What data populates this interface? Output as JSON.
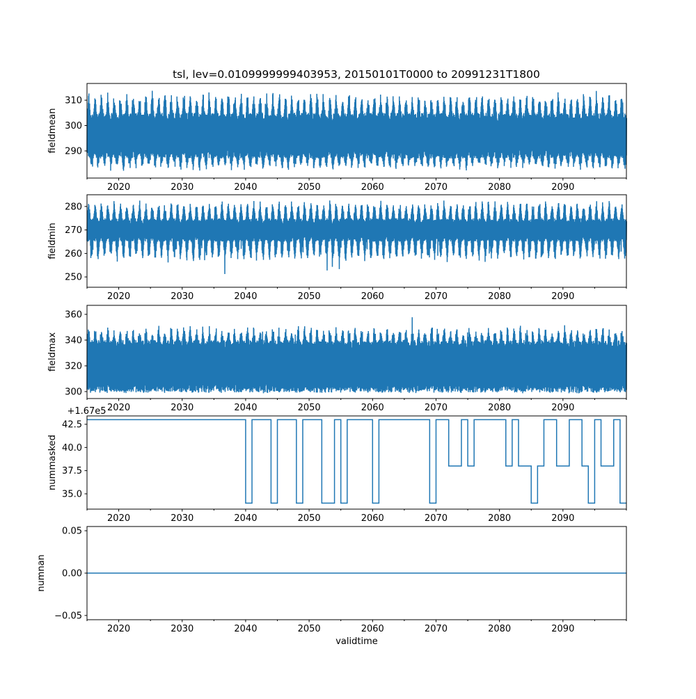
{
  "chart_data": [
    {
      "type": "line",
      "ylabel": "fieldmean",
      "ylim": [
        279.3,
        316.6
      ],
      "yticks": [
        290,
        300,
        310
      ],
      "description_values": {
        "dense_band": [
          287,
          305
        ],
        "seasonal_peak_max": 314,
        "seasonal_trough_min": 282
      },
      "color": "#1f77b4"
    },
    {
      "type": "line",
      "ylabel": "fieldmin",
      "ylim": [
        245.6,
        285
      ],
      "yticks": [
        250,
        260,
        270,
        280
      ],
      "description_values": {
        "dense_band": [
          265,
          275
        ],
        "seasonal_peak_max": 283,
        "seasonal_trough_min": 248
      },
      "color": "#1f77b4"
    },
    {
      "type": "line",
      "ylabel": "fieldmax",
      "ylim": [
        294.6,
        367
      ],
      "yticks": [
        300,
        320,
        340,
        360
      ],
      "description_values": {
        "dense_band": [
          300,
          340
        ],
        "seasonal_peak_max": 364,
        "seasonal_trough_min": 298
      },
      "color": "#1f77b4"
    },
    {
      "type": "line",
      "ylabel": "nummasked",
      "offset_text": "+1.67e5",
      "ylim": [
        33.35,
        43.4
      ],
      "yticks": [
        35.0,
        37.5,
        40.0,
        42.5
      ],
      "ytick_labels": [
        "35.0",
        "37.5",
        "40.0",
        "42.5"
      ],
      "step": "post",
      "color": "#1f77b4",
      "segments": [
        [
          2015,
          43
        ],
        [
          2040,
          34
        ],
        [
          2041,
          43
        ],
        [
          2044,
          34
        ],
        [
          2045,
          43
        ],
        [
          2048,
          34
        ],
        [
          2049,
          43
        ],
        [
          2052,
          34
        ],
        [
          2054,
          43
        ],
        [
          2055,
          34
        ],
        [
          2056,
          43
        ],
        [
          2060,
          34
        ],
        [
          2061,
          43
        ],
        [
          2069,
          34
        ],
        [
          2070,
          43
        ],
        [
          2072,
          38
        ],
        [
          2074,
          43
        ],
        [
          2075,
          38
        ],
        [
          2076,
          43
        ],
        [
          2081,
          38
        ],
        [
          2082,
          43
        ],
        [
          2083,
          38
        ],
        [
          2085,
          34
        ],
        [
          2086,
          38
        ],
        [
          2087,
          43
        ],
        [
          2089,
          38
        ],
        [
          2091,
          43
        ],
        [
          2093,
          38
        ],
        [
          2094,
          34
        ],
        [
          2095,
          43
        ],
        [
          2096,
          38
        ],
        [
          2098,
          43
        ],
        [
          2099,
          34
        ],
        [
          2100,
          34
        ]
      ]
    },
    {
      "type": "line",
      "ylabel": "numnan",
      "xlabel": "validtime",
      "ylim": [
        -0.055,
        0.055
      ],
      "yticks": [
        -0.05,
        0.0,
        0.05
      ],
      "ytick_labels": [
        "−0.05",
        "0.00",
        "0.05"
      ],
      "values_constant": 0,
      "color": "#1f77b4"
    }
  ],
  "title": "tsl, lev=0.0109999999403953, 20150101T0000 to 20991231T1800",
  "xlim": [
    2015,
    2100
  ],
  "xticks": [
    2020,
    2030,
    2040,
    2050,
    2060,
    2070,
    2080,
    2090
  ],
  "xtick_labels": [
    "2020",
    "2030",
    "2040",
    "2050",
    "2060",
    "2070",
    "2080",
    "2090"
  ],
  "xlabel": "validtime"
}
